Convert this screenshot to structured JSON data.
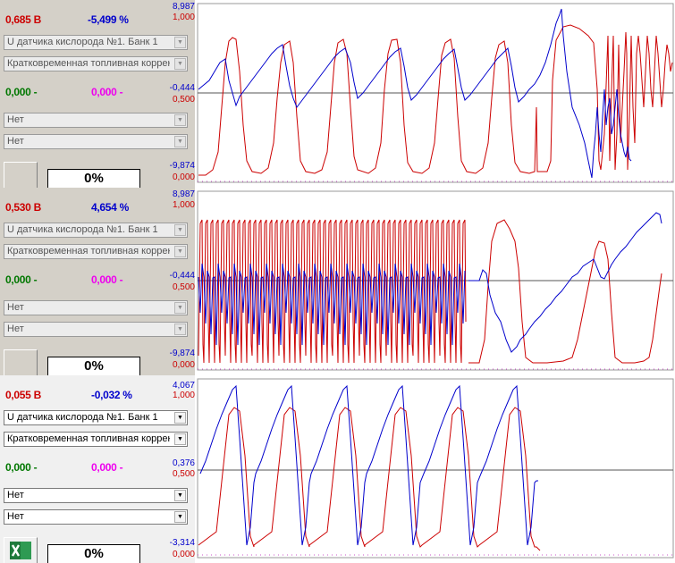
{
  "panels": [
    {
      "voltage": "0,685 В",
      "percent": "-5,499 %",
      "sensor_select": "U датчика кислорода №1. Банк 1",
      "trim_select": "Кратковременная топливная коррекция",
      "val_green": "0,000 -",
      "val_magenta": "0,000 -",
      "aux_select_1": "Нет",
      "aux_select_2": "Нет",
      "progress": "0%",
      "axis_blue": [
        "8,987",
        "-0,444",
        "-9,874"
      ],
      "axis_red": [
        "1,000",
        "0,500",
        "0,000"
      ]
    },
    {
      "voltage": "0,530 В",
      "percent": "4,654 %",
      "sensor_select": "U датчика кислорода №1. Банк 1",
      "trim_select": "Кратковременная топливная коррекция",
      "val_green": "0,000 -",
      "val_magenta": "0,000 -",
      "aux_select_1": "Нет",
      "aux_select_2": "Нет",
      "progress": "0%",
      "axis_blue": [
        "8,987",
        "-0,444",
        "-9,874"
      ],
      "axis_red": [
        "1,000",
        "0,500",
        "0,000"
      ]
    },
    {
      "voltage": "0,055 В",
      "percent": "-0,032 %",
      "sensor_select": "U датчика кислорода №1. Банк 1",
      "trim_select": "Кратковременная топливная коррекция",
      "val_green": "0,000 -",
      "val_magenta": "0,000 -",
      "aux_select_1": "Нет",
      "aux_select_2": "Нет",
      "progress": "0%",
      "axis_blue": [
        "4,067",
        "0,376",
        "-3,314"
      ],
      "axis_red": [
        "1,000",
        "0,500",
        "0,000"
      ]
    }
  ],
  "colors": {
    "red": "#cc0000",
    "blue": "#0000cc",
    "green": "#007700",
    "magenta": "#ee00ee",
    "excel_green": "#1f7a3c"
  },
  "icons": {
    "export": "excel-icon"
  }
}
